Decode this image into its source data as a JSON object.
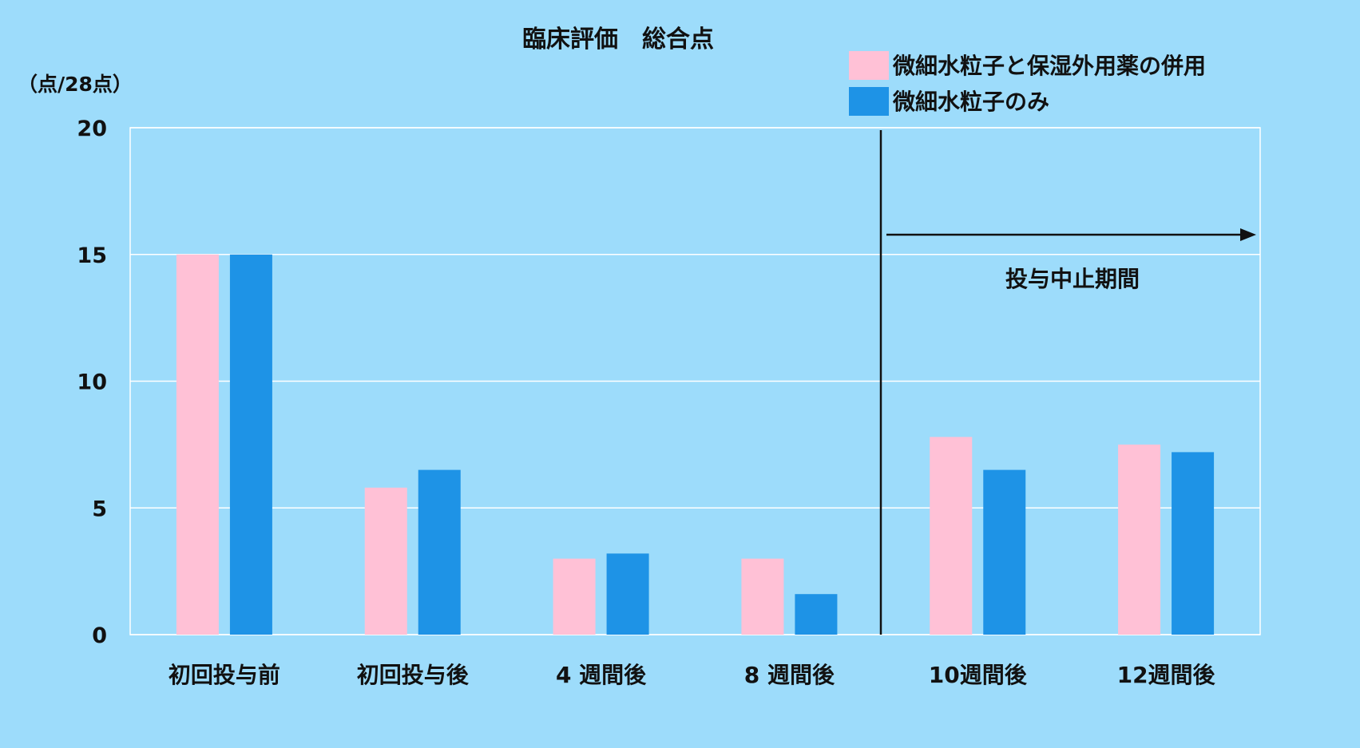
{
  "chart_data": {
    "type": "bar",
    "title": "臨床評価　総合点",
    "ylabel": "（点/28点）",
    "xlabel": "",
    "ylim": [
      0,
      20
    ],
    "yticks": [
      0,
      5,
      10,
      15,
      20
    ],
    "grid": true,
    "legend_position": "top-right",
    "categories": [
      "初回投与前",
      "初回投与後",
      "4 週間後",
      "8 週間後",
      "10週間後",
      "12週間後"
    ],
    "series": [
      {
        "name": "微細水粒子と保湿外用薬の併用",
        "color": "#ffc1d6",
        "values": [
          15.0,
          5.8,
          3.0,
          3.0,
          7.8,
          7.5
        ]
      },
      {
        "name": "微細水粒子のみ",
        "color": "#1e93e6",
        "values": [
          15.0,
          6.5,
          3.2,
          1.6,
          6.5,
          7.2
        ]
      }
    ],
    "annotation": {
      "text": "投与中止期間",
      "divider_after_category": 3
    }
  },
  "colors": {
    "background": "#9ddcfb",
    "grid": "#ffffff",
    "text": "#111111"
  }
}
